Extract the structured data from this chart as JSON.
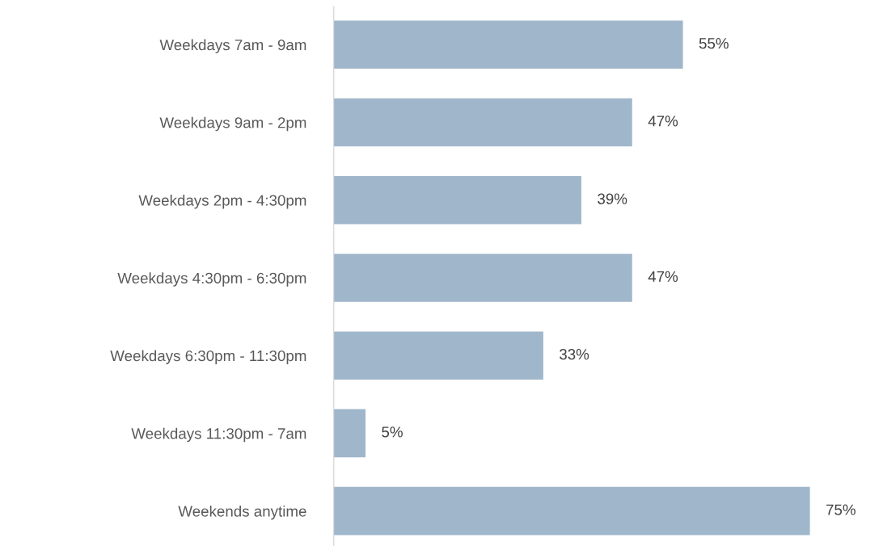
{
  "chart_data": {
    "type": "bar",
    "orientation": "horizontal",
    "categories": [
      "Weekdays 7am - 9am",
      "Weekdays 9am - 2pm",
      "Weekdays 2pm - 4:30pm",
      "Weekdays 4:30pm - 6:30pm",
      "Weekdays 6:30pm - 11:30pm",
      "Weekdays 11:30pm - 7am",
      "Weekends anytime"
    ],
    "values": [
      55,
      47,
      39,
      47,
      33,
      5,
      75
    ],
    "value_labels": [
      "55%",
      "47%",
      "39%",
      "47%",
      "33%",
      "5%",
      "75%"
    ],
    "color": "#a0b6cb",
    "tick_labels": "y"
  }
}
